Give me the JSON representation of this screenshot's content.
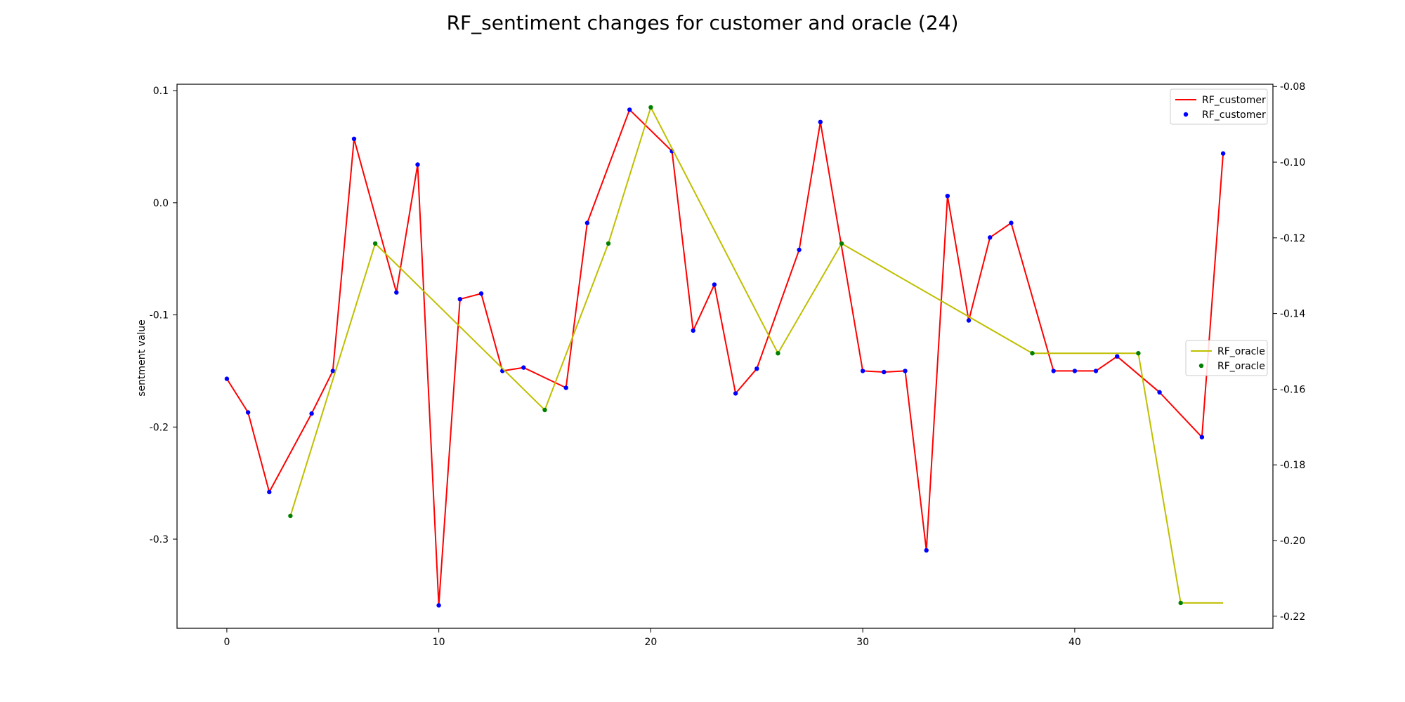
{
  "chart_data": {
    "type": "line",
    "title": "RF_sentiment changes for customer and oracle (24)",
    "xlabel": "",
    "ylabel": "sentment value",
    "y2label": "",
    "xlim": [
      -2.35,
      49.35
    ],
    "ylim": [
      -0.3795,
      0.1057
    ],
    "y2lim": [
      -0.2232,
      -0.0794
    ],
    "x_ticks": [
      0,
      10,
      20,
      30,
      40
    ],
    "y_ticks": [
      0.1,
      0.0,
      -0.1,
      -0.2,
      -0.3
    ],
    "y_tick_labels": [
      "0.1",
      "0.0",
      "-0.1",
      "-0.2",
      "-0.3"
    ],
    "y2_ticks": [
      -0.08,
      -0.1,
      -0.12,
      -0.14,
      -0.16,
      -0.18,
      -0.2,
      -0.22
    ],
    "y2_tick_labels": [
      "-0.08",
      "-0.10",
      "-0.12",
      "-0.14",
      "-0.16",
      "-0.18",
      "-0.20",
      "-0.22"
    ],
    "grid": false,
    "series": [
      {
        "name": "RF_customer",
        "axis": "left",
        "line_color": "#ff0000",
        "marker_color": "#0000ff",
        "x": [
          0,
          1,
          2,
          4,
          5,
          6,
          8,
          9,
          10,
          11,
          12,
          13,
          14,
          16,
          17,
          19,
          21,
          22,
          23,
          24,
          25,
          27,
          28,
          30,
          31,
          32,
          33,
          34,
          35,
          36,
          37,
          39,
          40,
          41,
          42,
          44,
          46,
          47
        ],
        "y": [
          -0.157,
          -0.187,
          -0.258,
          -0.188,
          -0.15,
          0.057,
          -0.08,
          0.034,
          -0.359,
          -0.086,
          -0.081,
          -0.15,
          -0.147,
          -0.165,
          -0.018,
          0.083,
          0.046,
          -0.114,
          -0.073,
          -0.17,
          -0.148,
          -0.042,
          0.072,
          -0.15,
          -0.151,
          -0.15,
          -0.31,
          0.006,
          -0.105,
          -0.031,
          -0.018,
          -0.15,
          -0.15,
          -0.15,
          -0.137,
          -0.169,
          -0.209,
          0.044
        ]
      },
      {
        "name": "RF_oracle",
        "axis": "right",
        "line_color": "#bfbf00",
        "marker_color": "#008000",
        "x": [
          3,
          7,
          15,
          18,
          20,
          26,
          29,
          38,
          43,
          45,
          47
        ],
        "y": [
          -0.1935,
          -0.1215,
          -0.1655,
          -0.1215,
          -0.0855,
          -0.1505,
          -0.1215,
          -0.1505,
          -0.1505,
          -0.2165,
          -0.2165
        ],
        "marker_x": [
          3,
          7,
          15,
          18,
          20,
          26,
          29,
          38,
          43,
          45
        ]
      }
    ],
    "legends": [
      {
        "placement": "upper right",
        "entries": [
          "RF_customer",
          "RF_customer"
        ]
      },
      {
        "placement": "center right",
        "entries": [
          "RF_oracle",
          "RF_oracle"
        ]
      }
    ]
  }
}
